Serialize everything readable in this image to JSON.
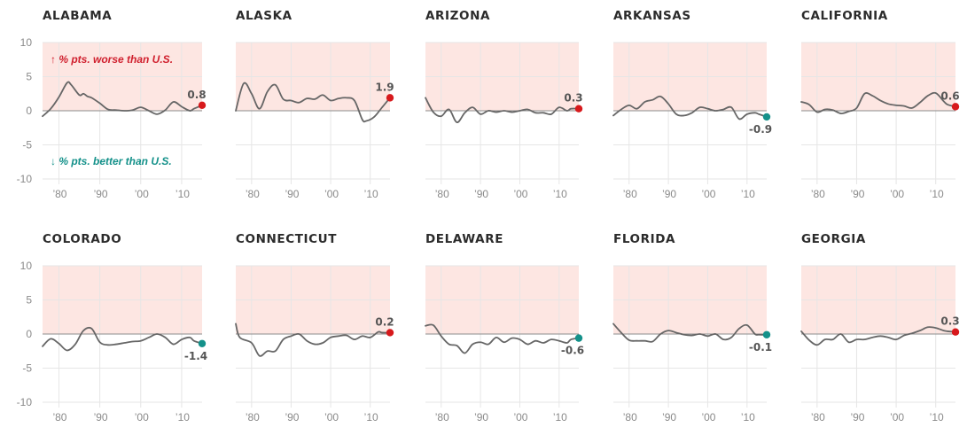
{
  "colors": {
    "worse": "#d7191c",
    "better": "#14918a",
    "worse_band": "#fde6e2",
    "line": "#666666",
    "grid": "#e6e6e6",
    "zero_line": "#8c8c8c"
  },
  "annotations": {
    "worse_arrow": "↑",
    "worse_text": "% pts. worse than U.S.",
    "better_arrow": "↓",
    "better_text": "% pts. better than U.S."
  },
  "chart_data": {
    "type": "line",
    "y_ticks": [
      10,
      5,
      0,
      -5,
      -10
    ],
    "ylim": [
      -10,
      10
    ],
    "xlim": [
      1976,
      2015
    ],
    "x_ticks": [
      1980,
      1990,
      2000,
      2010
    ],
    "x_tick_labels": [
      "’80",
      "’90",
      "’00",
      "’10"
    ],
    "shaded_region": "0 to 10 (worse than U.S.)",
    "panels": [
      {
        "name": "ALABAMA",
        "end_label": "0.8",
        "end_value": 0.8,
        "x": [
          1976,
          1978,
          1980,
          1982,
          1983,
          1985,
          1986,
          1987,
          1988,
          1990,
          1992,
          1994,
          1996,
          1998,
          2000,
          2002,
          2004,
          2006,
          2008,
          2010,
          2012,
          2013,
          2015
        ],
        "y": [
          -0.8,
          0.3,
          2.0,
          4.1,
          3.8,
          2.3,
          2.5,
          2.1,
          1.9,
          1.1,
          0.2,
          0.1,
          0.0,
          0.1,
          0.5,
          0.0,
          -0.5,
          0.1,
          1.3,
          0.6,
          0.0,
          0.3,
          0.8
        ]
      },
      {
        "name": "ALASKA",
        "end_label": "1.9",
        "end_value": 1.9,
        "x": [
          1976,
          1978,
          1980,
          1982,
          1984,
          1986,
          1988,
          1990,
          1992,
          1994,
          1996,
          1998,
          2000,
          2002,
          2004,
          2006,
          2008,
          2009,
          2011,
          2013,
          2015
        ],
        "y": [
          0.0,
          4.0,
          2.5,
          0.3,
          2.8,
          3.8,
          1.7,
          1.5,
          1.2,
          1.8,
          1.7,
          2.3,
          1.5,
          1.8,
          1.9,
          1.5,
          -1.3,
          -1.5,
          -0.9,
          0.5,
          1.9
        ]
      },
      {
        "name": "ARIZONA",
        "end_label": "0.3",
        "end_value": 0.3,
        "x": [
          1976,
          1978,
          1980,
          1982,
          1984,
          1986,
          1988,
          1990,
          1992,
          1994,
          1996,
          1998,
          2000,
          2002,
          2004,
          2006,
          2008,
          2010,
          2012,
          2013,
          2015
        ],
        "y": [
          1.9,
          -0.2,
          -0.8,
          0.2,
          -1.7,
          -0.3,
          0.5,
          -0.5,
          0.0,
          -0.2,
          0.0,
          -0.2,
          0.0,
          0.2,
          -0.3,
          -0.3,
          -0.5,
          0.5,
          0.0,
          0.3,
          0.3
        ]
      },
      {
        "name": "ARKANSAS",
        "end_label": "-0.9",
        "end_value": -0.9,
        "x": [
          1976,
          1978,
          1980,
          1982,
          1984,
          1986,
          1988,
          1990,
          1992,
          1994,
          1996,
          1998,
          2000,
          2002,
          2004,
          2006,
          2008,
          2010,
          2012,
          2013,
          2015
        ],
        "y": [
          -0.7,
          0.2,
          0.8,
          0.3,
          1.3,
          1.6,
          2.1,
          1.0,
          -0.5,
          -0.7,
          -0.3,
          0.5,
          0.3,
          0.0,
          0.2,
          0.5,
          -1.2,
          -0.5,
          -0.3,
          -0.5,
          -0.9
        ]
      },
      {
        "name": "CALIFORNIA",
        "end_label": "0.6",
        "end_value": 0.6,
        "x": [
          1976,
          1978,
          1980,
          1982,
          1984,
          1986,
          1988,
          1990,
          1992,
          1994,
          1996,
          1998,
          2000,
          2002,
          2004,
          2006,
          2008,
          2010,
          2012,
          2013,
          2015
        ],
        "y": [
          1.3,
          0.9,
          -0.2,
          0.2,
          0.1,
          -0.4,
          -0.1,
          0.4,
          2.5,
          2.2,
          1.5,
          1.0,
          0.8,
          0.7,
          0.4,
          1.2,
          2.2,
          2.6,
          1.4,
          0.9,
          0.6
        ]
      },
      {
        "name": "COLORADO",
        "end_label": "-1.4",
        "end_value": -1.4,
        "x": [
          1976,
          1978,
          1980,
          1982,
          1984,
          1986,
          1988,
          1990,
          1992,
          1994,
          1996,
          1998,
          2000,
          2002,
          2004,
          2006,
          2008,
          2010,
          2012,
          2013,
          2015
        ],
        "y": [
          -1.8,
          -0.7,
          -1.4,
          -2.4,
          -1.5,
          0.5,
          0.8,
          -1.2,
          -1.6,
          -1.5,
          -1.3,
          -1.1,
          -1.0,
          -0.5,
          0.0,
          -0.5,
          -1.5,
          -0.8,
          -0.5,
          -1.0,
          -1.4
        ]
      },
      {
        "name": "CONNECTICUT",
        "end_label": "0.2",
        "end_value": 0.2,
        "x": [
          1976,
          1977,
          1980,
          1982,
          1984,
          1986,
          1988,
          1990,
          1992,
          1994,
          1996,
          1998,
          2000,
          2002,
          2004,
          2006,
          2008,
          2010,
          2012,
          2013,
          2015
        ],
        "y": [
          1.5,
          -0.5,
          -1.3,
          -3.2,
          -2.5,
          -2.5,
          -0.8,
          -0.3,
          0.0,
          -1.0,
          -1.5,
          -1.3,
          -0.5,
          -0.3,
          -0.2,
          -0.8,
          -0.3,
          -0.5,
          0.3,
          0.2,
          0.2
        ]
      },
      {
        "name": "DELAWARE",
        "end_label": "-0.6",
        "end_value": -0.6,
        "x": [
          1976,
          1978,
          1980,
          1982,
          1984,
          1986,
          1988,
          1990,
          1992,
          1994,
          1996,
          1998,
          2000,
          2002,
          2004,
          2006,
          2008,
          2010,
          2012,
          2013,
          2015
        ],
        "y": [
          1.2,
          1.3,
          -0.3,
          -1.5,
          -1.7,
          -2.8,
          -1.5,
          -1.2,
          -1.5,
          -0.5,
          -1.2,
          -0.6,
          -0.8,
          -1.5,
          -1.0,
          -1.3,
          -0.8,
          -1.0,
          -1.3,
          -0.8,
          -0.6
        ]
      },
      {
        "name": "FLORIDA",
        "end_label": "-0.1",
        "end_value": -0.1,
        "x": [
          1976,
          1978,
          1980,
          1982,
          1984,
          1986,
          1988,
          1990,
          1992,
          1994,
          1996,
          1998,
          2000,
          2002,
          2004,
          2006,
          2008,
          2010,
          2012,
          2013,
          2015
        ],
        "y": [
          1.5,
          0.2,
          -0.9,
          -1.0,
          -1.0,
          -1.1,
          0.0,
          0.5,
          0.2,
          -0.1,
          -0.2,
          0.0,
          -0.3,
          0.0,
          -0.8,
          -0.5,
          0.8,
          1.3,
          0.0,
          -0.1,
          -0.1
        ]
      },
      {
        "name": "GEORGIA",
        "end_label": "0.3",
        "end_value": 0.3,
        "x": [
          1976,
          1978,
          1980,
          1982,
          1984,
          1986,
          1988,
          1990,
          1992,
          1994,
          1996,
          1998,
          2000,
          2002,
          2004,
          2006,
          2008,
          2010,
          2012,
          2013,
          2015
        ],
        "y": [
          0.4,
          -0.9,
          -1.6,
          -0.8,
          -0.8,
          0.0,
          -1.2,
          -0.8,
          -0.8,
          -0.5,
          -0.3,
          -0.5,
          -0.8,
          -0.2,
          0.1,
          0.5,
          1.0,
          0.9,
          0.5,
          0.4,
          0.3
        ]
      }
    ]
  }
}
